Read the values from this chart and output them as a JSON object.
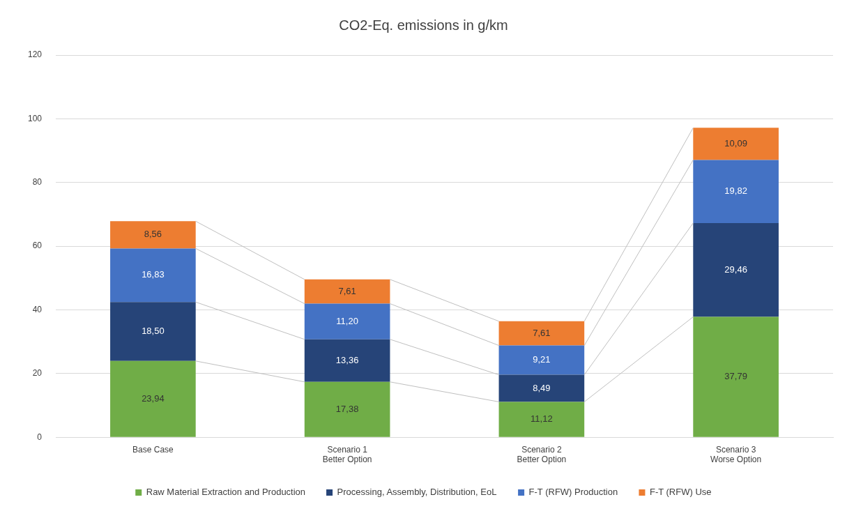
{
  "chart_data": {
    "type": "bar",
    "title": "CO2-Eq. emissions in g/km",
    "stacked": true,
    "categories": [
      "Base Case",
      "Scenario 1\nBetter Option",
      "Scenario 2\nBetter Option",
      "Scenario 3\nWorse Option"
    ],
    "series": [
      {
        "name": "Raw Material Extraction and Production",
        "color": "#70ad47",
        "values": [
          23.94,
          17.38,
          11.12,
          37.79
        ],
        "value_labels": [
          "23,94",
          "17,38",
          "11,12",
          "37,79"
        ]
      },
      {
        "name": "Processing, Assembly, Distribution, EoL",
        "color": "#264478",
        "values": [
          18.5,
          13.36,
          8.49,
          29.46
        ],
        "value_labels": [
          "18,50",
          "13,36",
          "8,49",
          "29,46"
        ]
      },
      {
        "name": "F-T (RFW) Production",
        "color": "#4472c4",
        "values": [
          16.83,
          11.2,
          9.21,
          19.82
        ],
        "value_labels": [
          "16,83",
          "11,20",
          "9,21",
          "19,82"
        ]
      },
      {
        "name": "F-T (RFW) Use",
        "color": "#ed7d31",
        "values": [
          8.56,
          7.61,
          7.61,
          10.09
        ],
        "value_labels": [
          "8,56",
          "7,61",
          "7,61",
          "10,09"
        ]
      }
    ],
    "ylim": [
      0,
      120
    ],
    "yticks": [
      0,
      20,
      40,
      60,
      80,
      100,
      120
    ],
    "grid": "y",
    "legend": "bottom"
  }
}
